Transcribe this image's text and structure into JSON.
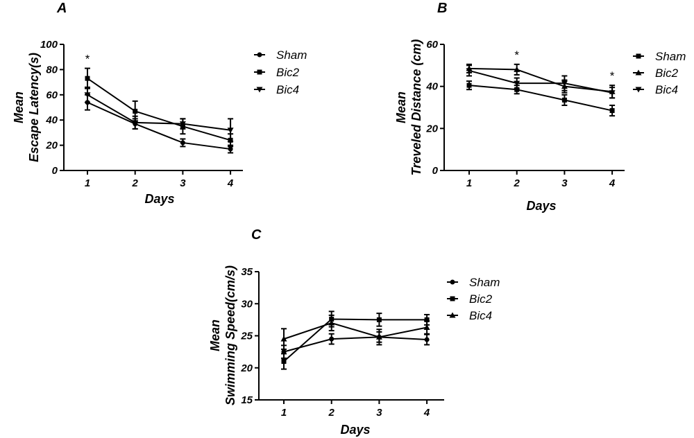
{
  "colors": {
    "ink": "#000000",
    "background": "#ffffff"
  },
  "chart_data": [
    {
      "type": "line",
      "panel": "A",
      "x": [
        "1",
        "2",
        "3",
        "4"
      ],
      "xlabel": "Days",
      "ylabel_lines": [
        "Mean",
        "Escape Latency(s)"
      ],
      "ylim": [
        0,
        100
      ],
      "yticks": [
        "0",
        "20",
        "40",
        "60",
        "80",
        "100"
      ],
      "legend": "top-right",
      "series": [
        {
          "name": "Sham",
          "marker": "circle",
          "values": [
            54,
            37,
            22,
            17
          ],
          "errors": [
            6,
            4,
            3,
            3
          ]
        },
        {
          "name": "Bic2",
          "marker": "square",
          "values": [
            73,
            47,
            35,
            24
          ],
          "errors": [
            8,
            8,
            6,
            5
          ]
        },
        {
          "name": "Bic4",
          "marker": "tri-down",
          "values": [
            60,
            38,
            37,
            32
          ],
          "errors": [
            6,
            5,
            4,
            9
          ]
        }
      ],
      "annotations": [
        {
          "x": "1",
          "text": "*"
        }
      ]
    },
    {
      "type": "line",
      "panel": "B",
      "x": [
        "1",
        "2",
        "3",
        "4"
      ],
      "xlabel": "Days",
      "ylabel_lines": [
        "Mean",
        "Treveled Distance (cm)"
      ],
      "ylim": [
        0,
        60
      ],
      "yticks": [
        "0",
        "20",
        "40",
        "60"
      ],
      "legend": "top-right",
      "series": [
        {
          "name": "Sham",
          "marker": "square",
          "values": [
            40.5,
            38.5,
            33.5,
            28.5
          ],
          "errors": [
            2,
            2,
            2.5,
            2.5
          ]
        },
        {
          "name": "Bic2",
          "marker": "tri-up",
          "values": [
            48.5,
            48,
            40,
            37.5
          ],
          "errors": [
            2,
            2.5,
            3,
            3
          ]
        },
        {
          "name": "Bic4",
          "marker": "tri-down",
          "values": [
            47.5,
            41.5,
            41.5,
            37
          ],
          "errors": [
            2.5,
            2.5,
            3.5,
            2.5
          ]
        }
      ],
      "annotations": [
        {
          "x": "2",
          "text": "*"
        },
        {
          "x": "4",
          "text": "*"
        }
      ]
    },
    {
      "type": "line",
      "panel": "C",
      "x": [
        "1",
        "2",
        "3",
        "4"
      ],
      "xlabel": "Days",
      "ylabel_lines": [
        "Mean",
        "Swimming Speed(cm/s)"
      ],
      "ylim": [
        15,
        35
      ],
      "yticks": [
        "15",
        "20",
        "25",
        "30",
        "35"
      ],
      "legend": "top-right",
      "series": [
        {
          "name": "Sham",
          "marker": "circle",
          "values": [
            22.5,
            24.5,
            24.8,
            24.4
          ],
          "errors": [
            1,
            0.8,
            0.8,
            0.8
          ]
        },
        {
          "name": "Bic2",
          "marker": "square",
          "values": [
            21,
            27.6,
            27.5,
            27.5
          ],
          "errors": [
            1.2,
            1.2,
            1,
            0.8
          ]
        },
        {
          "name": "Bic4",
          "marker": "tri-up",
          "values": [
            24.5,
            27,
            24.8,
            26.3
          ],
          "errors": [
            1.6,
            1.2,
            1.2,
            1
          ]
        }
      ],
      "annotations": []
    }
  ]
}
